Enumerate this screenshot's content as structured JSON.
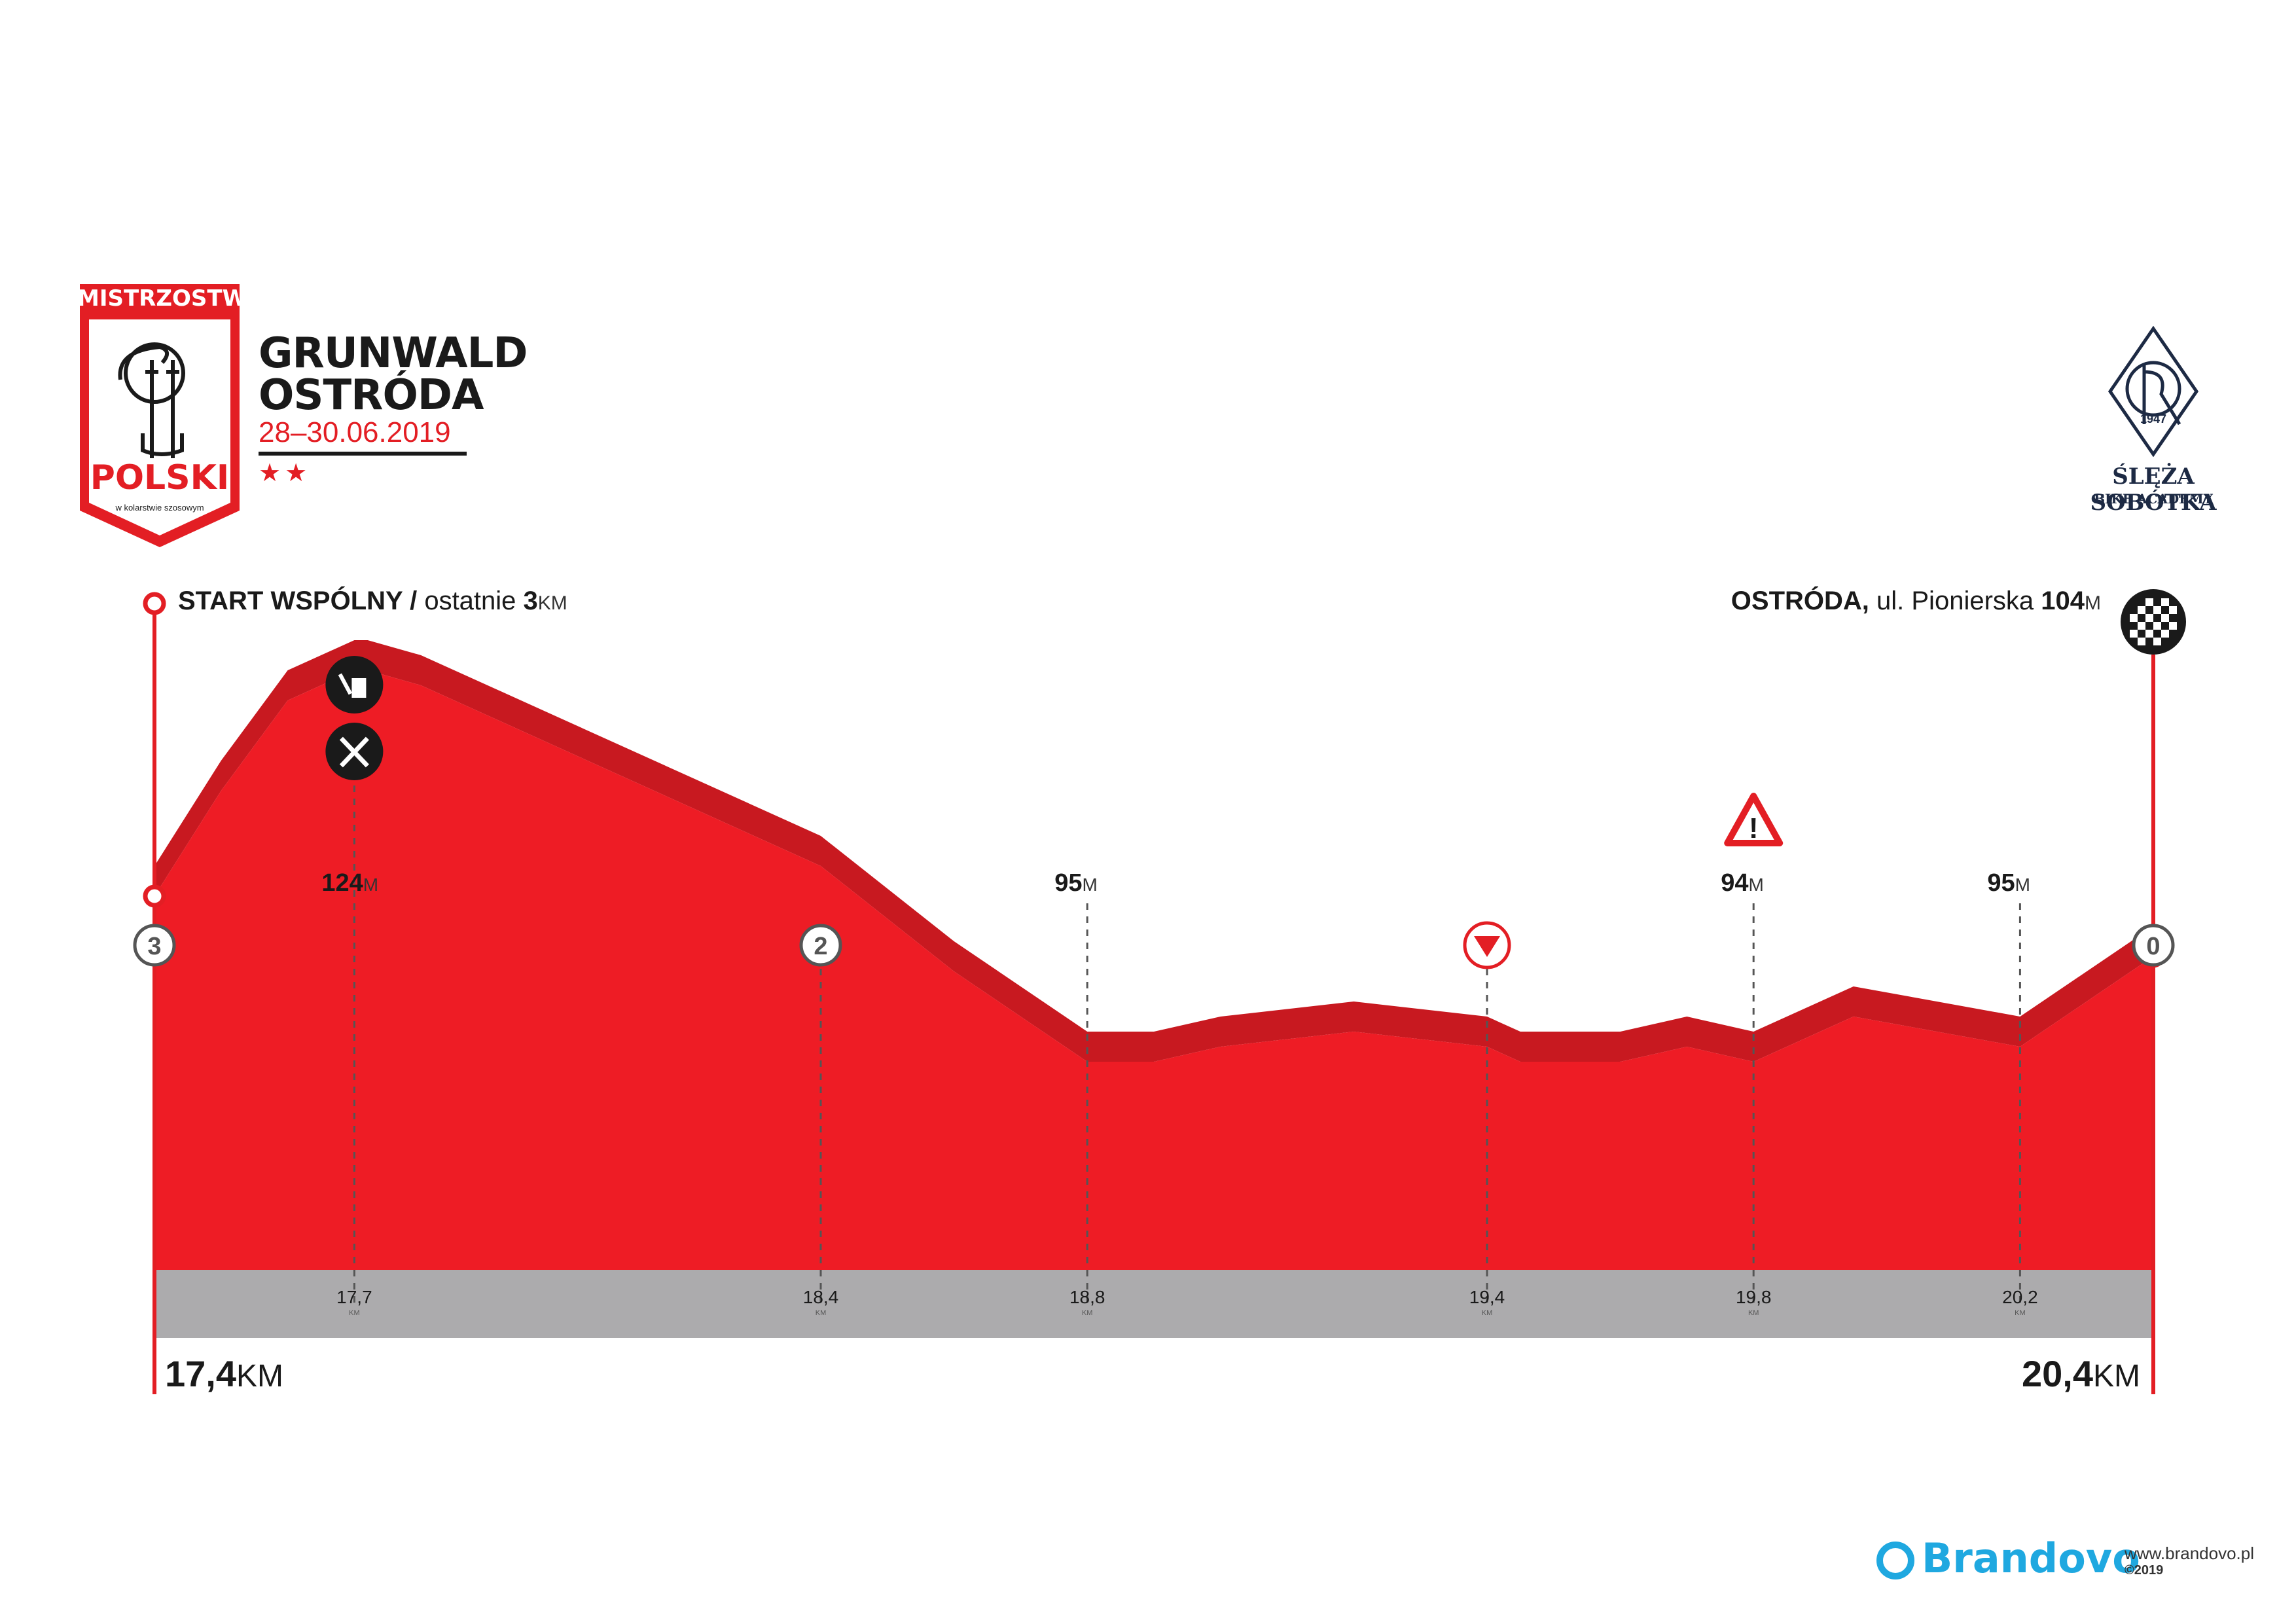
{
  "event": {
    "badge_top": "MISTRZOSTWA",
    "badge_main": "POLSKI",
    "badge_sub": "w kolarstwie szosowym",
    "title_line1": "GRUNWALD",
    "title_line2": "OSTRÓDA",
    "dates": "28–30.06.2019",
    "stars": "★★"
  },
  "club": {
    "name": "ŚLĘŻA SOBÓTKA",
    "sub": "BIKE ACADEMY",
    "year": "1947"
  },
  "start": {
    "label_bold": "START WSPÓLNY /",
    "label_normal": " ostatnie ",
    "km_value": "3",
    "km_unit": "KM"
  },
  "finish": {
    "label_bold": "OSTRÓDA,",
    "label_normal": " ul. Pionierska ",
    "alt_value": "104",
    "alt_unit": "M"
  },
  "range": {
    "start_value": "17,4",
    "end_value": "20,4",
    "unit": "KM"
  },
  "icons": {
    "feed_zone_top": "waste-bin-icon",
    "feed_zone_bottom": "fork-knife-icon",
    "warning": "warning-triangle-icon",
    "descent": "down-arrow-icon",
    "finish": "checkered-flag-icon"
  },
  "colors": {
    "profile": "#ee1c25",
    "profile_top": "#c81920",
    "band": "#acabad",
    "accent": "#e31e24",
    "brand": "#1fa8e0"
  },
  "chart_data": {
    "type": "area",
    "x": [
      17.4,
      17.5,
      17.6,
      17.7,
      17.72,
      17.8,
      18.0,
      18.2,
      18.4,
      18.6,
      18.8,
      18.9,
      19.0,
      19.2,
      19.4,
      19.45,
      19.6,
      19.7,
      19.8,
      19.95,
      20.2,
      20.4
    ],
    "y": [
      97,
      104,
      110,
      112,
      112,
      111,
      107,
      103,
      99,
      92,
      86,
      86,
      87,
      88,
      87,
      86,
      86,
      87,
      86,
      89,
      87,
      93
    ],
    "xlim": [
      17.4,
      20.4
    ],
    "x_ticks": [
      "17,7",
      "18,4",
      "18,8",
      "19,4",
      "19,8",
      "20,2"
    ],
    "x_tick_values": [
      17.7,
      18.4,
      18.8,
      19.4,
      19.8,
      20.2
    ],
    "x_tick_unit": "KM",
    "altitude_labels": [
      {
        "x": 17.7,
        "value": "124",
        "unit": "M"
      },
      {
        "x": 18.8,
        "value": "95",
        "unit": "M"
      },
      {
        "x": 19.8,
        "value": "94",
        "unit": "M"
      },
      {
        "x": 20.2,
        "value": "95",
        "unit": "M"
      }
    ],
    "km_to_go_markers": [
      {
        "x": 17.4,
        "label": "3"
      },
      {
        "x": 18.4,
        "label": "2"
      },
      {
        "x": 20.4,
        "label": "0"
      }
    ],
    "descent_marker_x": 19.4,
    "warning_marker_x": 19.8,
    "feed_zone_x": 17.7,
    "grid": false
  },
  "brand": {
    "name": "Brandovo",
    "site": "www.brandovo.pl",
    "copyright": "©2019"
  }
}
